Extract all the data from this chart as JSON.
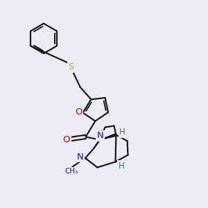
{
  "bg": "#ececf4",
  "bc": "#1a1a1a",
  "Sc": "#b8b800",
  "Oc": "#dd0000",
  "Nc": "#1111cc",
  "Hc": "#3a8080",
  "lw": 1.6,
  "dlw": 1.4,
  "xlim": [
    0,
    10
  ],
  "ylim": [
    0,
    10
  ]
}
